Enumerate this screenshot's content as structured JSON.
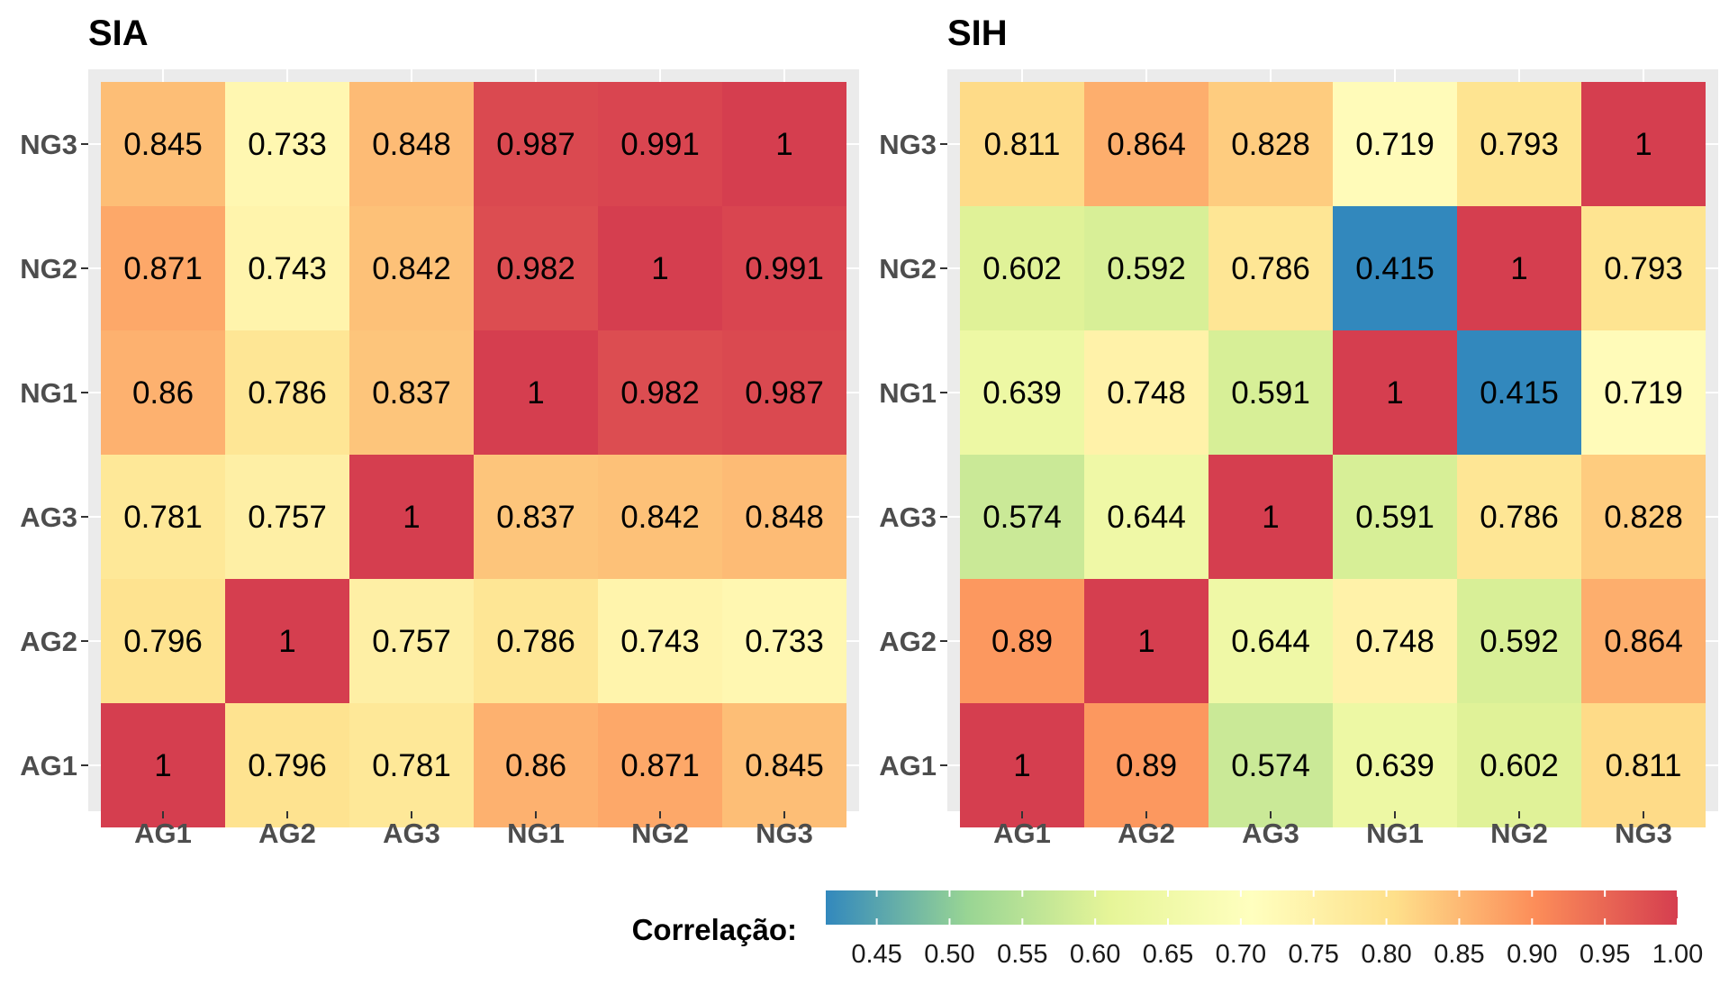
{
  "colors": {
    "panel_background": "#ebebeb",
    "scale": [
      "#3288bd",
      "#99d594",
      "#e6f598",
      "#ffffbf",
      "#fee08b",
      "#fc8d59",
      "#d53e4f"
    ],
    "text": "#000000",
    "axis_text": "#4d4d4d"
  },
  "chart_data": [
    {
      "type": "heatmap",
      "title": "SIA",
      "x": [
        "AG1",
        "AG2",
        "AG3",
        "NG1",
        "NG2",
        "NG3"
      ],
      "y": [
        "AG1",
        "AG2",
        "AG3",
        "NG1",
        "NG2",
        "NG3"
      ],
      "values": [
        [
          "1",
          "0.796",
          "0.781",
          "0.86",
          "0.871",
          "0.845"
        ],
        [
          "0.796",
          "1",
          "0.757",
          "0.786",
          "0.743",
          "0.733"
        ],
        [
          "0.781",
          "0.757",
          "1",
          "0.837",
          "0.842",
          "0.848"
        ],
        [
          "0.86",
          "0.786",
          "0.837",
          "1",
          "0.982",
          "0.987"
        ],
        [
          "0.871",
          "0.743",
          "0.842",
          "0.982",
          "1",
          "0.991"
        ],
        [
          "0.845",
          "0.733",
          "0.848",
          "0.987",
          "0.991",
          "1"
        ]
      ],
      "note_values": "values[i][j] = correlation between y[i] and x[j]"
    },
    {
      "type": "heatmap",
      "title": "SIH",
      "x": [
        "AG1",
        "AG2",
        "AG3",
        "NG1",
        "NG2",
        "NG3"
      ],
      "y": [
        "AG1",
        "AG2",
        "AG3",
        "NG1",
        "NG2",
        "NG3"
      ],
      "values": [
        [
          "1",
          "0.89",
          "0.574",
          "0.639",
          "0.602",
          "0.811"
        ],
        [
          "0.89",
          "1",
          "0.644",
          "0.748",
          "0.592",
          "0.864"
        ],
        [
          "0.574",
          "0.644",
          "1",
          "0.591",
          "0.786",
          "0.828"
        ],
        [
          "0.639",
          "0.748",
          "0.591",
          "1",
          "0.415",
          "0.719"
        ],
        [
          "0.602",
          "0.592",
          "0.786",
          "0.415",
          "1",
          "0.793"
        ],
        [
          "0.811",
          "0.864",
          "0.828",
          "0.719",
          "0.793",
          "1"
        ]
      ]
    }
  ],
  "legend": {
    "title": "Correlação:",
    "position": "bottom",
    "range": [
      0.415,
      1.0
    ],
    "ticks": [
      "0.45",
      "0.50",
      "0.55",
      "0.60",
      "0.65",
      "0.70",
      "0.75",
      "0.80",
      "0.85",
      "0.90",
      "0.95",
      "1.00"
    ]
  }
}
